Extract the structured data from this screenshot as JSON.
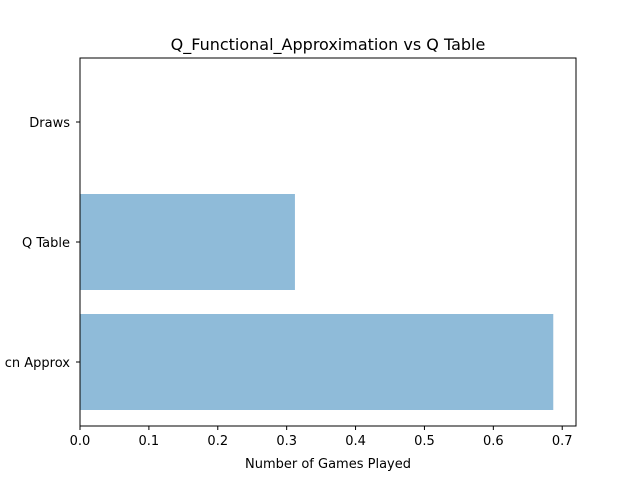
{
  "chart_data": {
    "type": "bar",
    "orientation": "horizontal",
    "title": "Q_Functional_Approximation vs Q Table",
    "xlabel": "Number of Games Played",
    "ylabel": "",
    "categories": [
      "cn Approx",
      "Q Table",
      "Draws"
    ],
    "values": [
      0.687,
      0.312,
      0.0
    ],
    "xlim": [
      0,
      0.72
    ],
    "xticks": [
      0.0,
      0.1,
      0.2,
      0.3,
      0.4,
      0.5,
      0.6,
      0.7
    ],
    "xtick_labels": [
      "0.0",
      "0.1",
      "0.2",
      "0.3",
      "0.4",
      "0.5",
      "0.6",
      "0.7"
    ],
    "bar_color": "#8fbbd9",
    "grid": false,
    "legend": "none"
  }
}
